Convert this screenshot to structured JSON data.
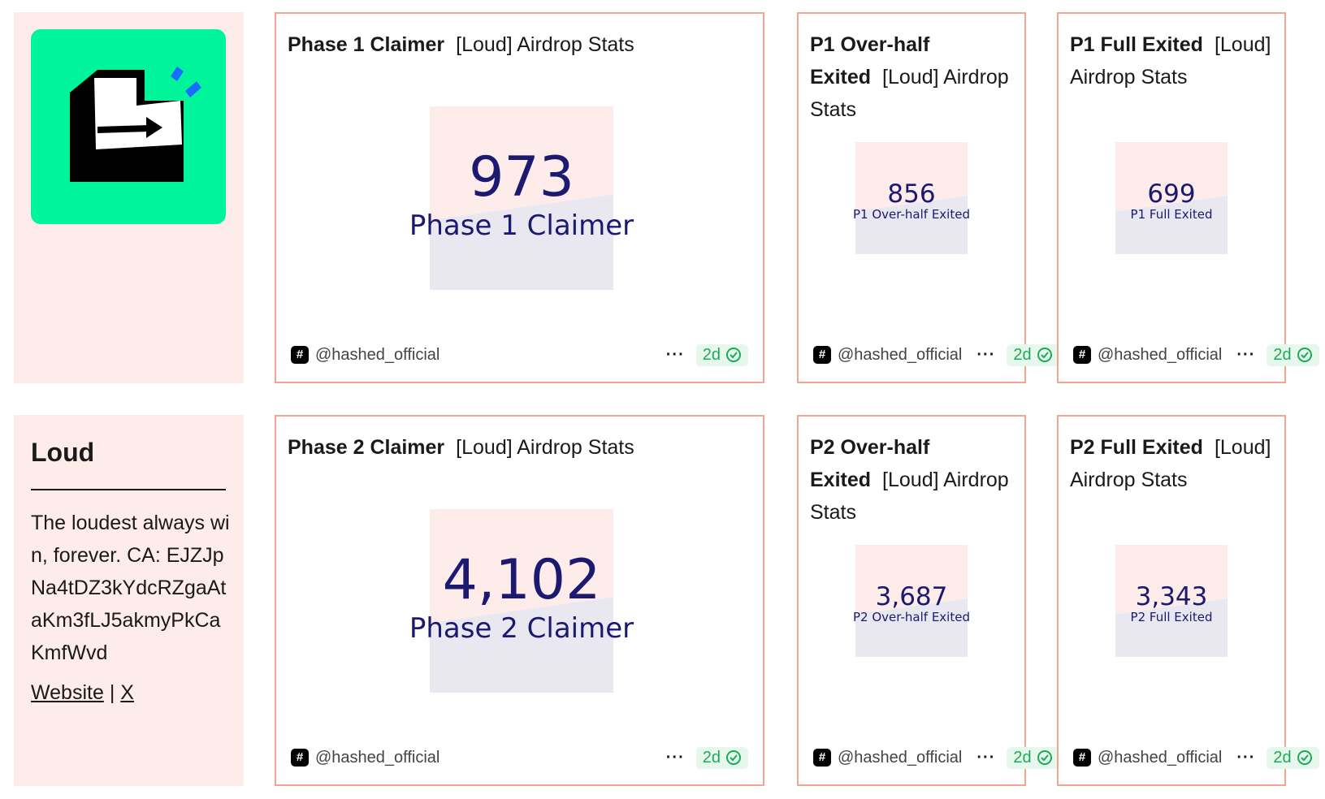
{
  "project": {
    "name": "Loud",
    "description": "The loudest always win, forever. CA: EJZJpNa4tDZ3kYdcRZgaAtaKm3fLJ5akmyPkCaKmfWvd",
    "links": [
      {
        "label": "Website"
      },
      {
        "label": "X"
      }
    ],
    "link_separator": "|",
    "logo_icon": "box-arrow-icon",
    "brand_color": "#00f59b"
  },
  "cards": [
    {
      "title_bold": "Phase 1 Claimer",
      "title_rest": "[Loud] Airdrop Stats",
      "value": "973",
      "label": "Phase 1 Claimer",
      "author": "@hashed_official",
      "more_label": "···",
      "age": "2d"
    },
    {
      "title_bold": "P1 Over-half Exited",
      "title_rest": "[Loud] Airdrop Stats",
      "value": "856",
      "label": "P1 Over-half Exited",
      "author": "@hashed_official",
      "more_label": "···",
      "age": "2d"
    },
    {
      "title_bold": "P1 Full Exited",
      "title_rest": "[Loud] Airdrop Stats",
      "value": "699",
      "label": "P1 Full Exited",
      "author": "@hashed_official",
      "more_label": "···",
      "age": "2d"
    },
    {
      "title_bold": "Phase 2 Claimer",
      "title_rest": "[Loud] Airdrop Stats",
      "value": "4,102",
      "label": "Phase 2 Claimer",
      "author": "@hashed_official",
      "more_label": "···",
      "age": "2d"
    },
    {
      "title_bold": "P2 Over-half Exited",
      "title_rest": "[Loud] Airdrop Stats",
      "value": "3,687",
      "label": "P2 Over-half Exited",
      "author": "@hashed_official",
      "more_label": "···",
      "age": "2d"
    },
    {
      "title_bold": "P2 Full Exited",
      "title_rest": "[Loud] Airdrop Stats",
      "value": "3,343",
      "label": "P2 Full Exited",
      "author": "@hashed_official",
      "more_label": "···",
      "age": "2d"
    }
  ],
  "colors": {
    "accent": "#1b1970",
    "card_border": "#f4a492",
    "panel_bg": "#fdecea",
    "badge_green": "#1ea85a"
  },
  "icons": {
    "author": "hashed-logo-icon",
    "verified": "verified-check-icon",
    "more": "more-dots-icon"
  }
}
